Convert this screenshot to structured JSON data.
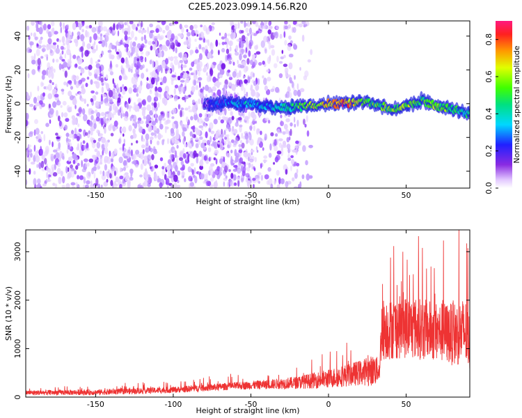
{
  "figure": {
    "title": "C2E5.2023.099.14.56.R20"
  },
  "colorbar": {
    "label": "Normalized spectral amplitude",
    "ticks": [
      {
        "value": 0.0,
        "label": "0.0"
      },
      {
        "value": 0.2,
        "label": "0.2"
      },
      {
        "value": 0.4,
        "label": "0.4"
      },
      {
        "value": 0.6,
        "label": "0.6"
      },
      {
        "value": 0.8,
        "label": "0.8"
      }
    ],
    "range": [
      0,
      0.9
    ],
    "colormap": "rainbow (violet to red)"
  },
  "chart_data": [
    {
      "type": "heatmap",
      "xlabel": "Height of straight line (km)",
      "ylabel": "Frequency (Hz)",
      "xlim": [
        -195,
        91
      ],
      "ylim": [
        -50,
        49
      ],
      "xticks": [
        {
          "value": -150,
          "label": "-150"
        },
        {
          "value": -100,
          "label": "-100"
        },
        {
          "value": -50,
          "label": "-50"
        },
        {
          "value": 0,
          "label": "0"
        },
        {
          "value": 50,
          "label": "50"
        }
      ],
      "yticks": [
        {
          "value": -40,
          "label": "-40"
        },
        {
          "value": -20,
          "label": "-20"
        },
        {
          "value": 0,
          "label": "0"
        },
        {
          "value": 20,
          "label": "20"
        },
        {
          "value": 40,
          "label": "40"
        }
      ],
      "noise_extent_x": [
        -195,
        -25
      ],
      "noise_level": 0.12,
      "signal_band": {
        "x": [
          -80,
          -70,
          -60,
          -50,
          -40,
          -30,
          -20,
          -10,
          0,
          10,
          20,
          30,
          40,
          50,
          60,
          70,
          80,
          90
        ],
        "center_hz": [
          0,
          0,
          0,
          0,
          -2,
          -2,
          -2,
          -1,
          0,
          0,
          1,
          0,
          -3,
          -2,
          2,
          -2,
          -3,
          -6
        ],
        "amplitude": [
          0.1,
          0.2,
          0.3,
          0.35,
          0.3,
          0.35,
          0.5,
          0.6,
          0.7,
          0.8,
          0.6,
          0.5,
          0.55,
          0.6,
          0.5,
          0.55,
          0.5,
          0.4
        ]
      }
    },
    {
      "type": "line",
      "xlabel": "Height of straight line (km)",
      "ylabel": "SNR (10 * v/v)",
      "xlim": [
        -195,
        91
      ],
      "ylim": [
        0,
        3450
      ],
      "color": "#ee3333",
      "xticks": [
        {
          "value": -150,
          "label": "-150"
        },
        {
          "value": -100,
          "label": "-100"
        },
        {
          "value": -50,
          "label": "-50"
        },
        {
          "value": 0,
          "label": "0"
        },
        {
          "value": 50,
          "label": "50"
        }
      ],
      "yticks": [
        {
          "value": 0,
          "label": "0"
        },
        {
          "value": 1000,
          "label": "1000"
        },
        {
          "value": 2000,
          "label": "2000"
        },
        {
          "value": 3000,
          "label": "3000"
        }
      ],
      "trend": {
        "x": [
          -195,
          -150,
          -100,
          -60,
          -40,
          -20,
          0,
          20,
          30,
          33,
          34,
          50,
          70,
          80,
          88,
          91
        ],
        "base": [
          90,
          100,
          150,
          230,
          260,
          300,
          380,
          500,
          560,
          560,
          1400,
          1450,
          1350,
          1300,
          1350,
          1100
        ],
        "amp": [
          80,
          90,
          100,
          120,
          150,
          200,
          300,
          400,
          500,
          300,
          1000,
          1000,
          950,
          1000,
          1100,
          900
        ]
      },
      "peaks": [
        {
          "x": 58,
          "y": 3320
        },
        {
          "x": 84,
          "y": 3450
        },
        {
          "x": 74,
          "y": 3230
        },
        {
          "x": 40,
          "y": 2880
        }
      ]
    }
  ]
}
